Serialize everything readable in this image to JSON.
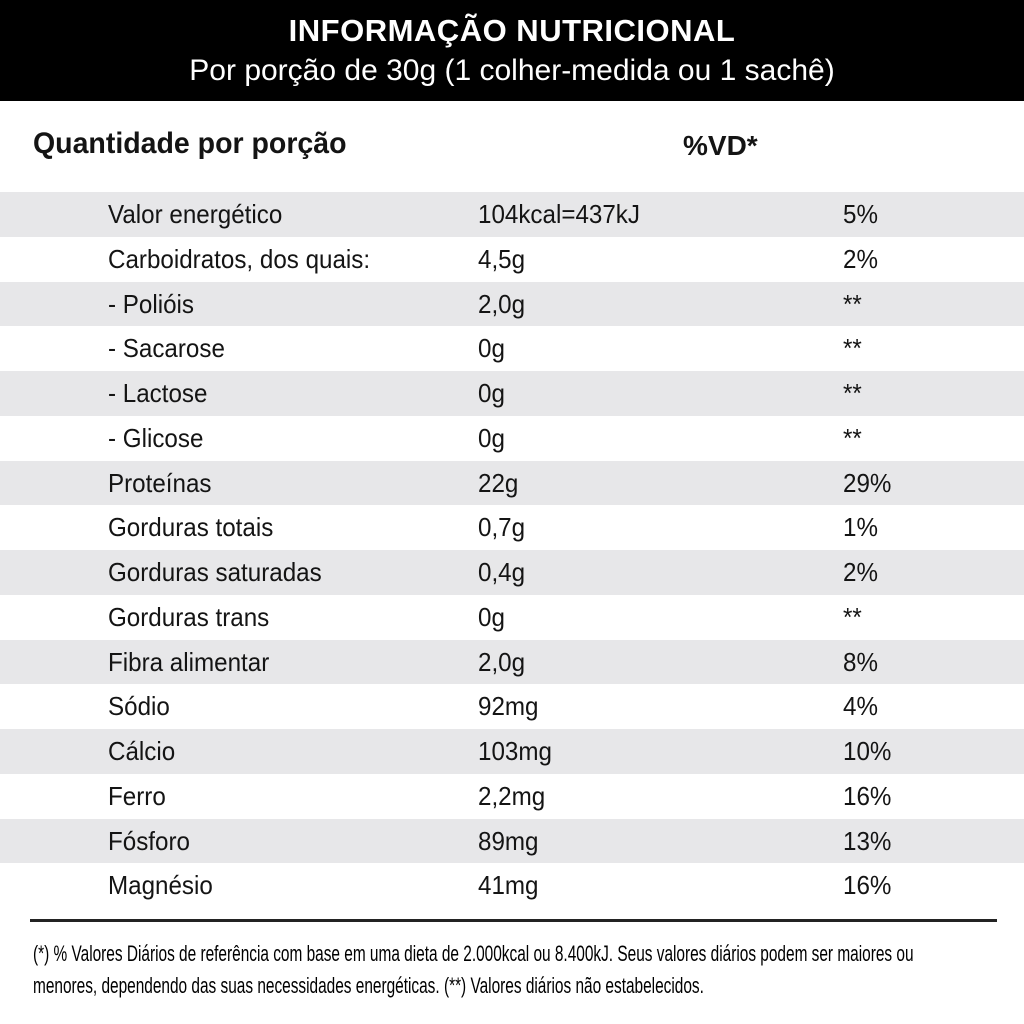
{
  "header": {
    "title": "INFORMAÇÃO NUTRICIONAL",
    "subtitle": "Por porção de 30g (1 colher-medida ou 1 sachê)",
    "bg_color": "#000000",
    "text_color": "#ffffff"
  },
  "columns": {
    "amount_header": "Quantidade por porção",
    "dv_header": "%VD*"
  },
  "table": {
    "stripe_color": "#e7e7e9",
    "rows": [
      {
        "label": "Valor energético",
        "value": "104kcal=437kJ",
        "dv": "5%"
      },
      {
        "label": "Carboidratos, dos quais:",
        "value": "4,5g",
        "dv": "2%"
      },
      {
        "label": "- Polióis",
        "value": "2,0g",
        "dv": "**"
      },
      {
        "label": "- Sacarose",
        "value": "0g",
        "dv": "**"
      },
      {
        "label": "- Lactose",
        "value": "0g",
        "dv": "**"
      },
      {
        "label": "- Glicose",
        "value": "0g",
        "dv": "**"
      },
      {
        "label": "Proteínas",
        "value": "22g",
        "dv": "29%"
      },
      {
        "label": "Gorduras totais",
        "value": "0,7g",
        "dv": "1%"
      },
      {
        "label": "Gorduras saturadas",
        "value": "0,4g",
        "dv": "2%"
      },
      {
        "label": "Gorduras trans",
        "value": "0g",
        "dv": "**"
      },
      {
        "label": "Fibra alimentar",
        "value": "2,0g",
        "dv": "8%"
      },
      {
        "label": "Sódio",
        "value": "92mg",
        "dv": "4%"
      },
      {
        "label": "Cálcio",
        "value": "103mg",
        "dv": "10%"
      },
      {
        "label": "Ferro",
        "value": "2,2mg",
        "dv": "16%"
      },
      {
        "label": "Fósforo",
        "value": "89mg",
        "dv": "13%"
      },
      {
        "label": "Magnésio",
        "value": "41mg",
        "dv": "16%"
      }
    ]
  },
  "footnote": {
    "lines": [
      "(*) % Valores Diários de referência com base em uma dieta de 2.000kcal ou 8.400kJ. Seus valores diários podem ser maiores ou",
      "menores, dependendo das suas necessidades energéticas. (**) Valores diários não estabelecidos."
    ]
  }
}
